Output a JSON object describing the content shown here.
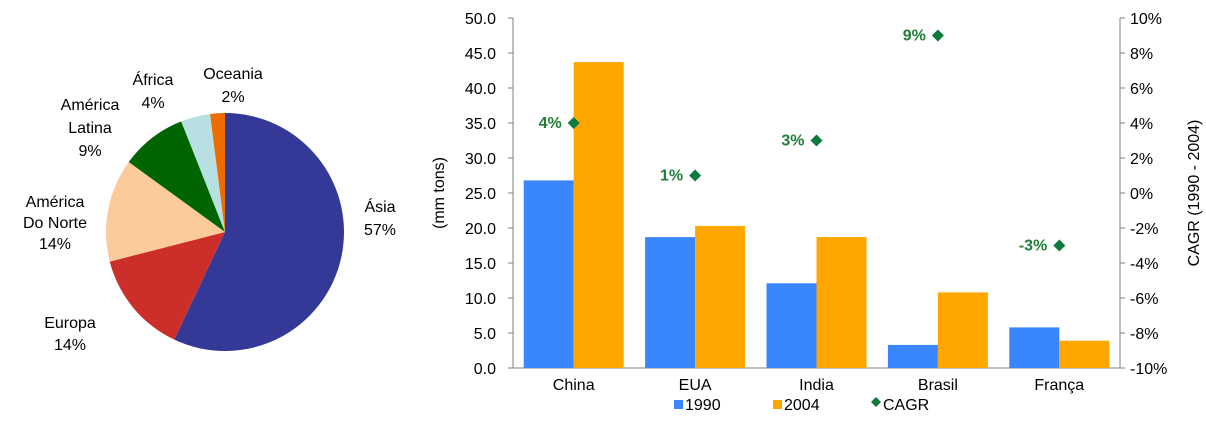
{
  "colors": {
    "series_1990": "#3a86ff",
    "series_2004": "#ffa600",
    "cagr": "#0e7a3c",
    "cagr_label": "#1e7e34",
    "axis": "#808080"
  },
  "chart_data": [
    {
      "type": "pie",
      "slices": [
        {
          "label": "Ásia",
          "value": 57,
          "value_label": "57%",
          "color": "#343896"
        },
        {
          "label": "Europa",
          "value": 14,
          "value_label": "14%",
          "color": "#cc2f2a"
        },
        {
          "label": "América Do Norte",
          "value": 14,
          "value_label": "14%",
          "color": "#fccb9c"
        },
        {
          "label": "América Latina",
          "value": 9,
          "value_label": "9%",
          "color": "#006400"
        },
        {
          "label": "África",
          "value": 4,
          "value_label": "4%",
          "color": "#b8e0e3"
        },
        {
          "label": "Oceania",
          "value": 2,
          "value_label": "2%",
          "color": "#ee6b00"
        }
      ]
    },
    {
      "type": "bar",
      "categories": [
        "China",
        "EUA",
        "India",
        "Brasil",
        "França"
      ],
      "series": [
        {
          "name": "1990",
          "values": [
            26.8,
            18.7,
            12.1,
            3.3,
            5.8
          ]
        },
        {
          "name": "2004",
          "values": [
            43.7,
            20.3,
            18.7,
            10.8,
            3.9
          ]
        }
      ],
      "line_series": {
        "name": "CAGR",
        "marker": "diamond",
        "values": [
          4,
          1,
          3,
          9,
          -3
        ],
        "labels": [
          "4%",
          "1%",
          "3%",
          "9%",
          "-3%"
        ]
      },
      "ylabel": "(mm tons)",
      "ylim": [
        0,
        50
      ],
      "yticks": [
        "0.0",
        "5.0",
        "10.0",
        "15.0",
        "20.0",
        "25.0",
        "30.0",
        "35.0",
        "40.0",
        "45.0",
        "50.0"
      ],
      "y2label": "CAGR (1990 - 2004)",
      "y2lim": [
        -10,
        10
      ],
      "y2ticks": [
        "-10%",
        "-8%",
        "-6%",
        "-4%",
        "-2%",
        "0%",
        "2%",
        "4%",
        "6%",
        "8%",
        "10%"
      ],
      "grid": false,
      "legend": {
        "position": "bottom",
        "entries": [
          "1990",
          "2004",
          "CAGR"
        ]
      }
    }
  ]
}
